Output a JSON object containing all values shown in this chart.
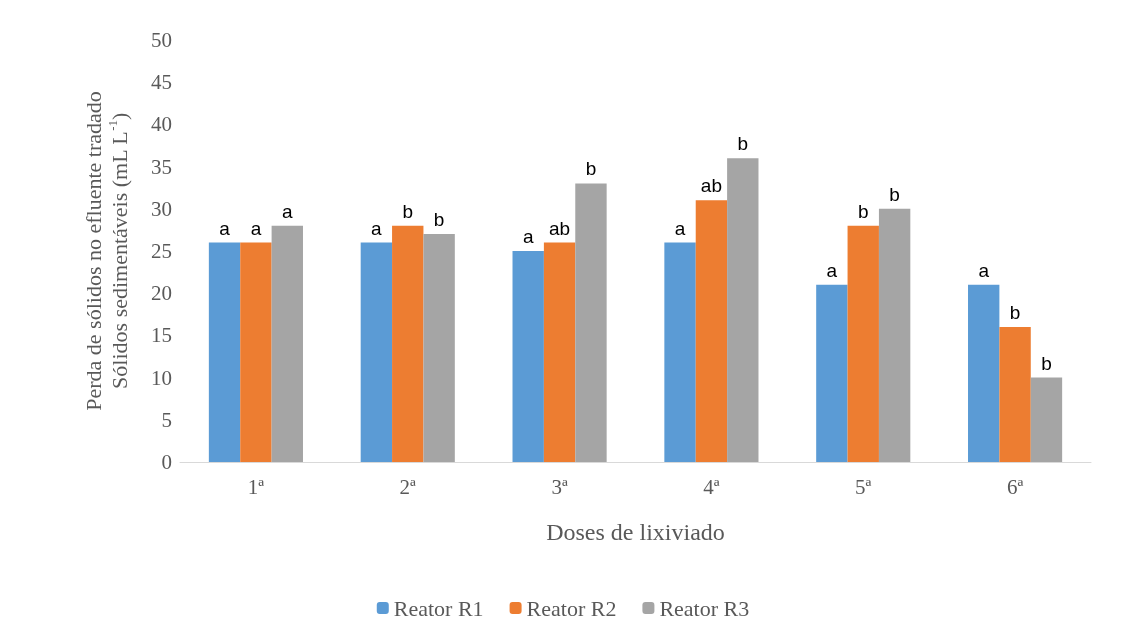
{
  "chart_data": {
    "type": "bar",
    "xlabel": "Doses de lixiviado",
    "ylabel": "Perda de sólidos no efluente tradado\nSólidos sedimentáveis (mL L$^{-1}$)",
    "categories": [
      "1ª",
      "2ª",
      "3ª",
      "4ª",
      "5ª",
      "6ª"
    ],
    "series": [
      {
        "name": "Reator R1",
        "color": "#5b9bd5",
        "values": [
          26,
          26,
          25,
          26,
          21,
          21
        ],
        "value_labels": [
          "a",
          "a",
          "a",
          "a",
          "a",
          "a"
        ]
      },
      {
        "name": "Reator R2",
        "color": "#ed7d31",
        "values": [
          26,
          28,
          26,
          31,
          28,
          16
        ],
        "value_labels": [
          "a",
          "b",
          "ab",
          "ab",
          "b",
          "b"
        ]
      },
      {
        "name": "Reator R3",
        "color": "#a5a5a5",
        "values": [
          28,
          27,
          33,
          36,
          30,
          10
        ],
        "value_labels": [
          "a",
          "b",
          "b",
          "b",
          "b",
          "b"
        ]
      }
    ],
    "ylim": [
      0,
      50
    ],
    "yticks": [
      0,
      5,
      10,
      15,
      20,
      25,
      30,
      35,
      40,
      45,
      50
    ],
    "grid": false,
    "legend": "bottom"
  }
}
